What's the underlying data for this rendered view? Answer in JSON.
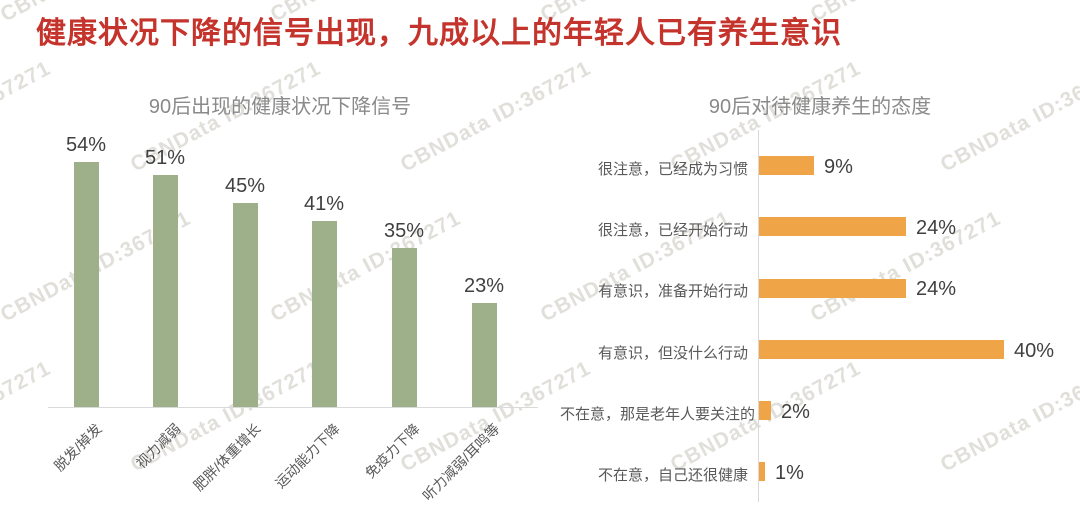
{
  "page": {
    "title": "健康状况下降的信号出现，九成以上的年轻人已有养生意识"
  },
  "watermark": {
    "text": "CBNData ID:367271"
  },
  "colors": {
    "title_red": "#c5342c",
    "bar_green": "#9DB089",
    "bar_orange": "#F0A448",
    "label_gray": "#595959",
    "value_gray": "#404040",
    "chart_title_gray": "#8a8a8a",
    "axis_gray": "#d9d9d9"
  },
  "chart_data": [
    {
      "type": "bar",
      "orientation": "vertical",
      "title": "90后出现的健康状况下降信号",
      "categories": [
        "脱发/掉发",
        "视力减弱",
        "肥胖/体重增长",
        "运动能力下降",
        "免疫力下降",
        "听力减弱/耳鸣等"
      ],
      "values": [
        54,
        51,
        45,
        41,
        35,
        23
      ],
      "unit": "%",
      "data_labels": true,
      "bar_color": "#9DB089",
      "ylim": [
        0,
        60
      ],
      "grid": false,
      "category_label_rotation_deg": 45,
      "legend": "none"
    },
    {
      "type": "bar",
      "orientation": "horizontal",
      "title": "90后对待健康养生的态度",
      "categories": [
        "很注意，已经成为习惯",
        "很注意，已经开始行动",
        "有意识，准备开始行动",
        "有意识，但没什么行动",
        "不在意，那是老年人要关注的",
        "不在意，自己还很健康"
      ],
      "values": [
        9,
        24,
        24,
        40,
        2,
        1
      ],
      "unit": "%",
      "data_labels": true,
      "bar_color": "#F0A448",
      "xlim": [
        0,
        44
      ],
      "grid": false,
      "legend": "none"
    }
  ]
}
